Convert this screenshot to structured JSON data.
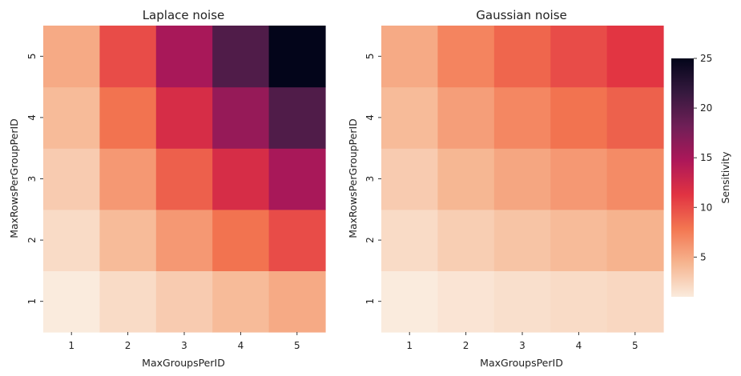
{
  "chart_data": [
    {
      "type": "heatmap",
      "title": "Laplace noise",
      "xlabel": "MaxGroupsPerID",
      "ylabel": "MaxRowsPerGroupPerID",
      "x_categories": [
        "1",
        "2",
        "3",
        "4",
        "5"
      ],
      "y_categories": [
        "1",
        "2",
        "3",
        "4",
        "5"
      ],
      "values": [
        [
          1,
          2,
          3,
          4,
          5
        ],
        [
          2,
          4,
          6,
          8,
          10
        ],
        [
          3,
          6,
          9,
          12,
          15
        ],
        [
          4,
          8,
          12,
          16,
          20
        ],
        [
          5,
          10,
          15,
          20,
          25
        ]
      ]
    },
    {
      "type": "heatmap",
      "title": "Gaussian noise",
      "xlabel": "MaxGroupsPerID",
      "ylabel": "MaxRowsPerGroupPerID",
      "x_categories": [
        "1",
        "2",
        "3",
        "4",
        "5"
      ],
      "y_categories": [
        "1",
        "2",
        "3",
        "4",
        "5"
      ],
      "values": [
        [
          1,
          1.41,
          1.73,
          2,
          2.24
        ],
        [
          2,
          2.83,
          3.46,
          4,
          4.47
        ],
        [
          3,
          4.24,
          5.2,
          6,
          6.71
        ],
        [
          4,
          5.66,
          6.93,
          8,
          8.94
        ],
        [
          5,
          7.07,
          8.66,
          10,
          11.18
        ]
      ]
    }
  ],
  "colorbar": {
    "label": "Sensitivity",
    "range": [
      1,
      25
    ],
    "ticks": [
      "5",
      "10",
      "15",
      "20",
      "25"
    ],
    "colormap": "rocket_r",
    "stops": [
      "#faebdd",
      "#f6b48f",
      "#f37651",
      "#e13342",
      "#ad1759",
      "#701f57",
      "#35193e",
      "#03051a"
    ]
  }
}
